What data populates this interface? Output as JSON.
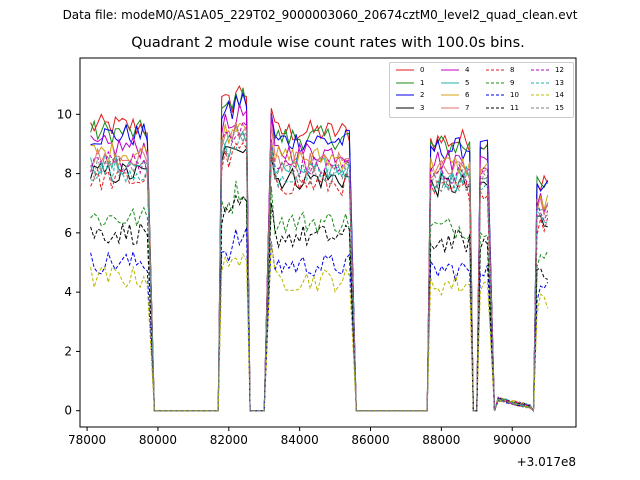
{
  "suptitle": "Data file: modeM0/AS1A05_229T02_9000003060_20674cztM0_level2_quad_clean.evt",
  "chart_data": {
    "type": "line",
    "title": "Quadrant 2 module wise count rates with 100.0s bins.",
    "xlabel": "",
    "ylabel": "",
    "x_offset_label": "+3.017e8",
    "xlim": [
      77800,
      91800
    ],
    "ylim": [
      -0.55,
      11.9
    ],
    "x_ticks": [
      78000,
      80000,
      82000,
      84000,
      86000,
      88000,
      90000
    ],
    "x_tick_labels": [
      "78000",
      "80000",
      "82000",
      "84000",
      "86000",
      "88000",
      "90000"
    ],
    "y_ticks": [
      0,
      2,
      4,
      6,
      8,
      10
    ],
    "y_tick_labels": [
      "0",
      "2",
      "4",
      "6",
      "8",
      "10"
    ],
    "bin_seconds": 100,
    "segments": [
      {
        "start": 78100,
        "end": 79700,
        "drop_end": 79900
      },
      {
        "rise_start": 81700,
        "start": 81800,
        "end": 82500,
        "drop_end": 82600
      },
      {
        "rise_start": 83000,
        "start": 83200,
        "end": 85400,
        "drop_end": 85600
      },
      {
        "rise_start": 87600,
        "start": 87700,
        "end": 88800,
        "drop_end": 88900
      },
      {
        "rise_start": 89000,
        "start": 89100,
        "end": 89300,
        "drop_end": 89500
      },
      {
        "rise_start": 90600,
        "start": 90700,
        "end": 91000,
        "drop_end": 91000
      }
    ],
    "series": [
      {
        "name": "0",
        "color": "#e41a1a",
        "style": "solid",
        "level": 9.6
      },
      {
        "name": "1",
        "color": "#1a8a1a",
        "style": "solid",
        "level": 9.4
      },
      {
        "name": "2",
        "color": "#0000ee",
        "style": "solid",
        "level": 9.3
      },
      {
        "name": "3",
        "color": "#000000",
        "style": "solid",
        "level": 8.0
      },
      {
        "name": "4",
        "color": "#c000c0",
        "style": "solid",
        "level": 8.9
      },
      {
        "name": "5",
        "color": "#20b2aa",
        "style": "solid",
        "level": 8.3
      },
      {
        "name": "6",
        "color": "#d4a017",
        "style": "solid",
        "level": 8.7
      },
      {
        "name": "7",
        "color": "#e07070",
        "style": "solid",
        "level": 8.5
      },
      {
        "name": "8",
        "color": "#e41a1a",
        "style": "dashed",
        "level": 7.8
      },
      {
        "name": "9",
        "color": "#1a8a1a",
        "style": "dashed",
        "level": 6.5
      },
      {
        "name": "10",
        "color": "#0000ee",
        "style": "dashed",
        "level": 5.0
      },
      {
        "name": "11",
        "color": "#000000",
        "style": "dashed",
        "level": 6.0
      },
      {
        "name": "12",
        "color": "#c000c0",
        "style": "dashed",
        "level": 8.4
      },
      {
        "name": "13",
        "color": "#20b2aa",
        "style": "dashed",
        "level": 8.1
      },
      {
        "name": "14",
        "color": "#b8b800",
        "style": "dashed",
        "level": 4.5
      },
      {
        "name": "15",
        "color": "#808080",
        "style": "dashed",
        "level": 8.2
      }
    ]
  }
}
